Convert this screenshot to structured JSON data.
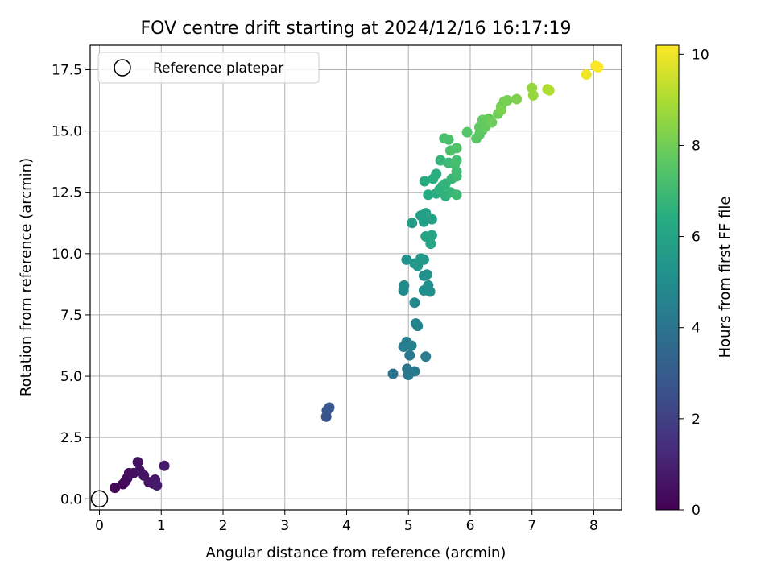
{
  "chart_data": {
    "type": "scatter",
    "title": "FOV centre drift starting at 2024/12/16 16:17:19",
    "xlabel": "Angular distance from reference (arcmin)",
    "ylabel": "Rotation from reference (arcmin)",
    "xlim": [
      -0.15,
      8.45
    ],
    "ylim": [
      -0.45,
      18.5
    ],
    "xticks": [
      "0",
      "1",
      "2",
      "3",
      "4",
      "5",
      "6",
      "7",
      "8"
    ],
    "yticks": [
      "0.0",
      "2.5",
      "5.0",
      "7.5",
      "10.0",
      "12.5",
      "15.0",
      "17.5"
    ],
    "grid": true,
    "legend": {
      "label": "Reference platepar",
      "placement": "top-left"
    },
    "reference_point": {
      "x": 0,
      "y": 0
    },
    "colorbar": {
      "label": "Hours from first FF file",
      "colormap": "viridis",
      "range": [
        0,
        10.2
      ],
      "ticks": [
        "0",
        "2",
        "4",
        "6",
        "8",
        "10"
      ]
    },
    "points": [
      {
        "x": 0.25,
        "y": 0.45,
        "h": 0.1
      },
      {
        "x": 0.38,
        "y": 0.6,
        "h": 0.2
      },
      {
        "x": 0.42,
        "y": 0.72,
        "h": 0.25
      },
      {
        "x": 0.45,
        "y": 0.85,
        "h": 0.3
      },
      {
        "x": 0.48,
        "y": 1.05,
        "h": 0.35
      },
      {
        "x": 0.55,
        "y": 1.05,
        "h": 0.4
      },
      {
        "x": 0.62,
        "y": 1.5,
        "h": 0.45
      },
      {
        "x": 0.65,
        "y": 1.15,
        "h": 0.5
      },
      {
        "x": 0.72,
        "y": 0.95,
        "h": 0.55
      },
      {
        "x": 0.8,
        "y": 0.68,
        "h": 0.6
      },
      {
        "x": 0.87,
        "y": 0.62,
        "h": 0.65
      },
      {
        "x": 0.9,
        "y": 0.78,
        "h": 0.7
      },
      {
        "x": 0.93,
        "y": 0.55,
        "h": 0.75
      },
      {
        "x": 1.05,
        "y": 1.35,
        "h": 0.8
      },
      {
        "x": 3.67,
        "y": 3.35,
        "h": 2.6
      },
      {
        "x": 3.68,
        "y": 3.6,
        "h": 2.7
      },
      {
        "x": 3.72,
        "y": 3.72,
        "h": 2.8
      },
      {
        "x": 4.75,
        "y": 5.1,
        "h": 4.0
      },
      {
        "x": 4.98,
        "y": 5.3,
        "h": 4.1
      },
      {
        "x": 5.0,
        "y": 5.05,
        "h": 4.15
      },
      {
        "x": 5.1,
        "y": 5.2,
        "h": 4.2
      },
      {
        "x": 5.02,
        "y": 5.85,
        "h": 4.25
      },
      {
        "x": 5.28,
        "y": 5.8,
        "h": 4.3
      },
      {
        "x": 4.92,
        "y": 6.2,
        "h": 4.35
      },
      {
        "x": 4.97,
        "y": 6.4,
        "h": 4.4
      },
      {
        "x": 5.05,
        "y": 6.25,
        "h": 4.45
      },
      {
        "x": 5.12,
        "y": 7.15,
        "h": 4.6
      },
      {
        "x": 5.15,
        "y": 7.05,
        "h": 4.65
      },
      {
        "x": 5.1,
        "y": 8.0,
        "h": 4.8
      },
      {
        "x": 4.92,
        "y": 8.5,
        "h": 4.9
      },
      {
        "x": 4.93,
        "y": 8.7,
        "h": 4.95
      },
      {
        "x": 5.25,
        "y": 8.5,
        "h": 5.0
      },
      {
        "x": 5.32,
        "y": 8.7,
        "h": 5.05
      },
      {
        "x": 5.35,
        "y": 8.45,
        "h": 5.1
      },
      {
        "x": 5.25,
        "y": 9.1,
        "h": 5.15
      },
      {
        "x": 5.3,
        "y": 9.15,
        "h": 5.2
      },
      {
        "x": 4.97,
        "y": 9.75,
        "h": 5.3
      },
      {
        "x": 5.1,
        "y": 9.6,
        "h": 5.35
      },
      {
        "x": 5.15,
        "y": 9.5,
        "h": 5.4
      },
      {
        "x": 5.2,
        "y": 9.8,
        "h": 5.45
      },
      {
        "x": 5.25,
        "y": 9.75,
        "h": 5.5
      },
      {
        "x": 5.06,
        "y": 11.25,
        "h": 5.7
      },
      {
        "x": 5.2,
        "y": 11.55,
        "h": 5.75
      },
      {
        "x": 5.25,
        "y": 11.3,
        "h": 5.8
      },
      {
        "x": 5.28,
        "y": 11.65,
        "h": 5.85
      },
      {
        "x": 5.38,
        "y": 11.4,
        "h": 5.9
      },
      {
        "x": 5.28,
        "y": 10.7,
        "h": 5.95
      },
      {
        "x": 5.35,
        "y": 10.65,
        "h": 6.0
      },
      {
        "x": 5.38,
        "y": 10.75,
        "h": 6.05
      },
      {
        "x": 5.36,
        "y": 10.4,
        "h": 6.1
      },
      {
        "x": 5.26,
        "y": 12.95,
        "h": 6.3
      },
      {
        "x": 5.32,
        "y": 12.4,
        "h": 6.35
      },
      {
        "x": 5.45,
        "y": 12.45,
        "h": 6.4
      },
      {
        "x": 5.4,
        "y": 13.05,
        "h": 6.45
      },
      {
        "x": 5.45,
        "y": 13.25,
        "h": 6.5
      },
      {
        "x": 5.5,
        "y": 12.6,
        "h": 6.55
      },
      {
        "x": 5.55,
        "y": 12.75,
        "h": 6.6
      },
      {
        "x": 5.6,
        "y": 12.35,
        "h": 6.65
      },
      {
        "x": 5.6,
        "y": 12.85,
        "h": 6.7
      },
      {
        "x": 5.52,
        "y": 13.8,
        "h": 6.75
      },
      {
        "x": 5.68,
        "y": 12.5,
        "h": 6.8
      },
      {
        "x": 5.7,
        "y": 13.05,
        "h": 6.85
      },
      {
        "x": 5.65,
        "y": 13.7,
        "h": 6.9
      },
      {
        "x": 5.78,
        "y": 12.4,
        "h": 6.95
      },
      {
        "x": 5.78,
        "y": 13.15,
        "h": 7.0
      },
      {
        "x": 5.78,
        "y": 13.35,
        "h": 7.05
      },
      {
        "x": 5.75,
        "y": 13.65,
        "h": 7.1
      },
      {
        "x": 5.78,
        "y": 13.8,
        "h": 7.15
      },
      {
        "x": 5.58,
        "y": 14.7,
        "h": 7.2
      },
      {
        "x": 5.65,
        "y": 14.65,
        "h": 7.25
      },
      {
        "x": 5.68,
        "y": 14.2,
        "h": 7.3
      },
      {
        "x": 5.78,
        "y": 14.3,
        "h": 7.35
      },
      {
        "x": 5.95,
        "y": 14.95,
        "h": 7.5
      },
      {
        "x": 6.1,
        "y": 14.7,
        "h": 7.55
      },
      {
        "x": 6.15,
        "y": 14.85,
        "h": 7.6
      },
      {
        "x": 6.2,
        "y": 15.05,
        "h": 7.65
      },
      {
        "x": 6.15,
        "y": 15.15,
        "h": 7.7
      },
      {
        "x": 6.2,
        "y": 15.45,
        "h": 7.75
      },
      {
        "x": 6.25,
        "y": 15.2,
        "h": 7.8
      },
      {
        "x": 6.3,
        "y": 15.5,
        "h": 7.85
      },
      {
        "x": 6.35,
        "y": 15.35,
        "h": 7.9
      },
      {
        "x": 6.45,
        "y": 15.7,
        "h": 7.95
      },
      {
        "x": 6.5,
        "y": 16.0,
        "h": 8.0
      },
      {
        "x": 6.55,
        "y": 16.2,
        "h": 8.05
      },
      {
        "x": 6.6,
        "y": 16.25,
        "h": 8.1
      },
      {
        "x": 6.5,
        "y": 15.85,
        "h": 8.15
      },
      {
        "x": 6.75,
        "y": 16.3,
        "h": 8.25
      },
      {
        "x": 7.0,
        "y": 16.75,
        "h": 8.6
      },
      {
        "x": 7.02,
        "y": 16.45,
        "h": 8.65
      },
      {
        "x": 7.25,
        "y": 16.7,
        "h": 9.0
      },
      {
        "x": 7.28,
        "y": 16.65,
        "h": 9.05
      },
      {
        "x": 7.88,
        "y": 17.3,
        "h": 10.0
      },
      {
        "x": 8.03,
        "y": 17.65,
        "h": 10.1
      },
      {
        "x": 8.07,
        "y": 17.6,
        "h": 10.2
      }
    ]
  }
}
